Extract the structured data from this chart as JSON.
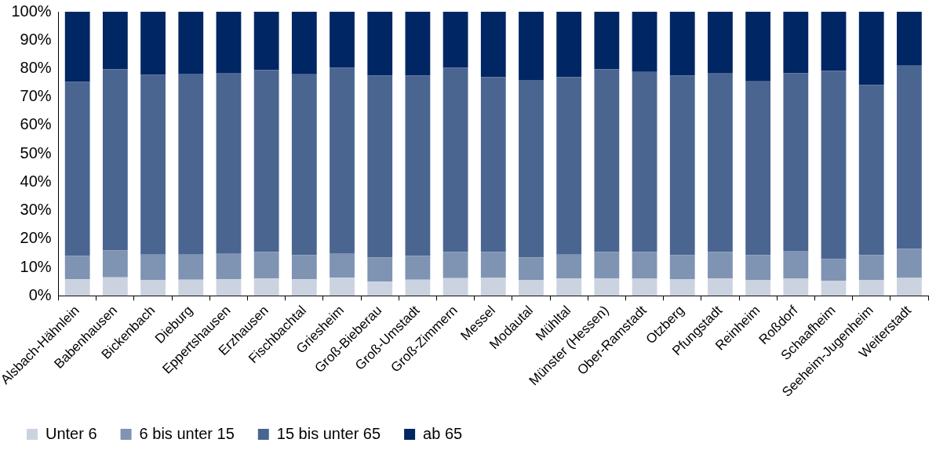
{
  "chart_data": {
    "type": "bar",
    "stacked": true,
    "legend": "bottom",
    "grid": false,
    "categories": [
      "Alsbach-Hähnlein",
      "Babenhausen",
      "Bickenbach",
      "Dieburg",
      "Eppertshausen",
      "Erzhausen",
      "Fischbachtal",
      "Griesheim",
      "Groß-Bieberau",
      "Groß-Umstadt",
      "Groß-Zimmern",
      "Messel",
      "Modautal",
      "Mühltal",
      "Münster (Hessen)",
      "Ober-Ramstadt",
      "Otzberg",
      "Pfungstadt",
      "Reinheim",
      "Roßdorf",
      "Schaafheim",
      "Seeheim-Jugenheim",
      "Weiterstadt"
    ],
    "ylim": [
      0,
      100
    ],
    "yticks": [
      {
        "value": 0,
        "label": "0%"
      },
      {
        "value": 10,
        "label": "10%"
      },
      {
        "value": 20,
        "label": "20%"
      },
      {
        "value": 30,
        "label": "30%"
      },
      {
        "value": 40,
        "label": "40%"
      },
      {
        "value": 50,
        "label": "50%"
      },
      {
        "value": 60,
        "label": "60%"
      },
      {
        "value": 70,
        "label": "70%"
      },
      {
        "value": 80,
        "label": "80%"
      },
      {
        "value": 90,
        "label": "90%"
      },
      {
        "value": 100,
        "label": "100%"
      }
    ],
    "series": [
      {
        "name": "Unter 6",
        "color": "#ccd3e0",
        "values": [
          5.8,
          6.5,
          5.5,
          5.7,
          5.8,
          6.1,
          5.8,
          6.4,
          5.0,
          5.7,
          6.2,
          6.3,
          5.6,
          6.1,
          6.1,
          6.0,
          5.9,
          6.1,
          5.6,
          6.0,
          5.3,
          5.5,
          6.3
        ]
      },
      {
        "name": "6 bis unter 15",
        "color": "#7f93b3",
        "values": [
          8.2,
          9.5,
          9.0,
          8.8,
          9.0,
          9.4,
          8.5,
          8.6,
          8.5,
          8.3,
          9.3,
          9.2,
          7.9,
          8.4,
          9.4,
          9.5,
          8.4,
          9.4,
          8.7,
          9.8,
          7.7,
          8.8,
          10.2
        ]
      },
      {
        "name": "15 bis unter 65",
        "color": "#4b6591",
        "values": [
          61.3,
          63.8,
          63.3,
          63.7,
          63.7,
          64.0,
          63.7,
          65.3,
          64.0,
          63.5,
          64.8,
          61.5,
          62.5,
          62.5,
          64.3,
          63.3,
          63.2,
          63.0,
          61.2,
          62.5,
          66.2,
          59.9,
          64.5
        ]
      },
      {
        "name": "ab 65",
        "color": "#002663",
        "values": [
          24.7,
          20.2,
          22.2,
          21.8,
          21.5,
          20.5,
          22.0,
          19.7,
          22.5,
          22.5,
          19.7,
          23.0,
          24.0,
          23.0,
          20.2,
          21.2,
          22.5,
          21.5,
          24.5,
          21.7,
          20.8,
          25.8,
          19.0
        ]
      }
    ]
  }
}
